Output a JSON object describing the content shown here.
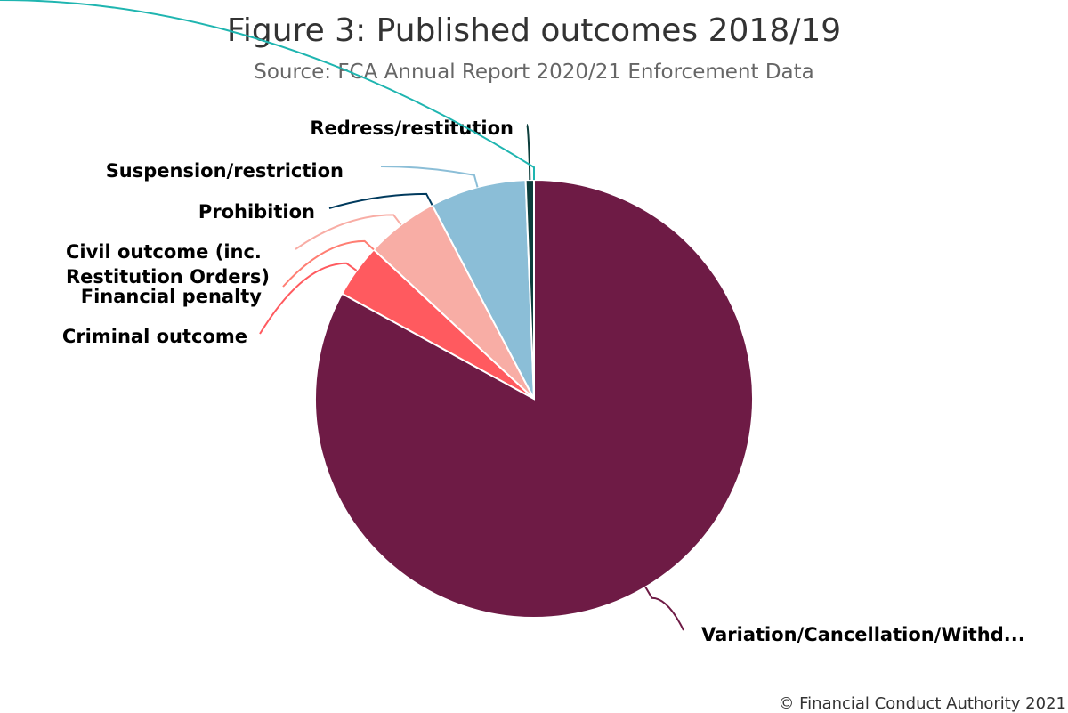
{
  "chart_data": {
    "type": "pie",
    "title": "Figure 3: Published outcomes 2018/19",
    "subtitle": "Source: FCA Annual Report 2020/21 Enforcement Data",
    "credit": "© Financial Conduct Authority 2021",
    "legend": "none",
    "slices": [
      {
        "label": "Variation/Cancellation/Withd...",
        "value": 81.9,
        "color": "#6E1B45"
      },
      {
        "label": "Criminal outcome",
        "value": 3.9,
        "color": "#FF5A5F"
      },
      {
        "label": "Financial penalty",
        "value": 0.0,
        "color": "#FF7E73"
      },
      {
        "label": "Civil outcome (inc. Restitution Orders)",
        "value": 5.3,
        "color": "#F8ADA5"
      },
      {
        "label": "Prohibition",
        "value": 0.0,
        "color": "#003A5D"
      },
      {
        "label": "Suspension/restriction",
        "value": 7.0,
        "color": "#8BBED7"
      },
      {
        "label": "Redress/restitution",
        "value": 0.6,
        "color": "#0B3D3B"
      },
      {
        "label": "",
        "value": 0.0,
        "color": "#1FB5B0"
      }
    ],
    "label_lines": [
      [
        "Variation/Cancellation/Withd..."
      ],
      [
        "Criminal outcome"
      ],
      [
        "Financial penalty"
      ],
      [
        "Civil outcome (inc.",
        "Restitution Orders)"
      ],
      [
        "Prohibition"
      ],
      [
        "Suspension/restriction"
      ],
      [
        "Redress/restitution"
      ],
      []
    ]
  }
}
